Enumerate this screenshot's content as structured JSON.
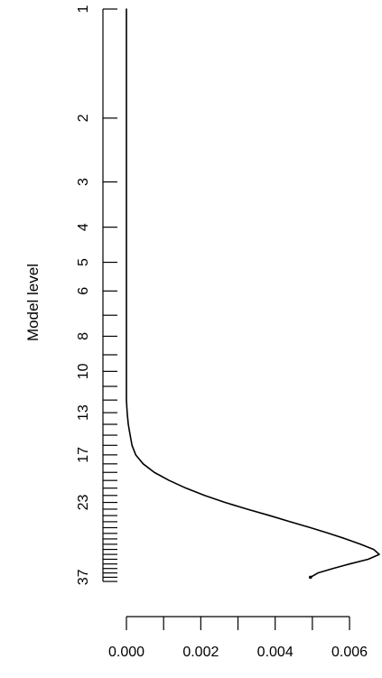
{
  "chart_data": {
    "type": "line",
    "title": "",
    "xlabel": "",
    "ylabel": "Model level",
    "xlim": [
      0.0,
      0.0068
    ],
    "ylim": [
      1,
      40
    ],
    "y_scale": "log",
    "y_reversed": true,
    "grid": false,
    "x_tick_values": [
      0.0,
      0.001,
      0.002,
      0.003,
      0.004,
      0.005,
      0.006
    ],
    "x_tick_labels": [
      {
        "value": 0.0,
        "label": "0.000"
      },
      {
        "value": 0.002,
        "label": "0.002"
      },
      {
        "value": 0.004,
        "label": "0.004"
      },
      {
        "value": 0.006,
        "label": "0.006"
      }
    ],
    "y_tick_values": [
      1,
      2,
      3,
      4,
      5,
      6,
      7,
      8,
      9,
      10,
      11,
      12,
      13,
      14,
      15,
      16,
      17,
      18,
      19,
      20,
      21,
      22,
      23,
      24,
      25,
      26,
      27,
      28,
      29,
      30,
      31,
      32,
      33,
      34,
      35,
      36,
      37,
      38
    ],
    "y_tick_labels": [
      {
        "value": 1,
        "label": "1"
      },
      {
        "value": 2,
        "label": "2"
      },
      {
        "value": 3,
        "label": "3"
      },
      {
        "value": 4,
        "label": "4"
      },
      {
        "value": 5,
        "label": "5"
      },
      {
        "value": 6,
        "label": "6"
      },
      {
        "value": 8,
        "label": "8"
      },
      {
        "value": 10,
        "label": "10"
      },
      {
        "value": 13,
        "label": "13"
      },
      {
        "value": 17,
        "label": "17"
      },
      {
        "value": 23,
        "label": "23"
      },
      {
        "value": 37,
        "label": "37"
      }
    ],
    "series": [
      {
        "points": [
          {
            "x": 0.0,
            "level": 1
          },
          {
            "x": 0.0,
            "level": 2
          },
          {
            "x": 0.0,
            "level": 3
          },
          {
            "x": 0.0,
            "level": 5
          },
          {
            "x": 0.0,
            "level": 8
          },
          {
            "x": 0.0,
            "level": 12
          },
          {
            "x": 2e-05,
            "level": 13
          },
          {
            "x": 5e-05,
            "level": 14
          },
          {
            "x": 0.0001,
            "level": 15
          },
          {
            "x": 0.00015,
            "level": 16
          },
          {
            "x": 0.00025,
            "level": 17
          },
          {
            "x": 0.00045,
            "level": 18
          },
          {
            "x": 0.00075,
            "level": 19
          },
          {
            "x": 0.00115,
            "level": 20
          },
          {
            "x": 0.0016,
            "level": 21
          },
          {
            "x": 0.0021,
            "level": 22
          },
          {
            "x": 0.00265,
            "level": 23
          },
          {
            "x": 0.00325,
            "level": 24
          },
          {
            "x": 0.00385,
            "level": 25
          },
          {
            "x": 0.0044,
            "level": 26
          },
          {
            "x": 0.00495,
            "level": 27
          },
          {
            "x": 0.00545,
            "level": 28
          },
          {
            "x": 0.0059,
            "level": 29
          },
          {
            "x": 0.0063,
            "level": 30
          },
          {
            "x": 0.00665,
            "level": 31
          },
          {
            "x": 0.0068,
            "level": 32
          },
          {
            "x": 0.0065,
            "level": 33
          },
          {
            "x": 0.006,
            "level": 34
          },
          {
            "x": 0.00555,
            "level": 35
          },
          {
            "x": 0.00515,
            "level": 36
          },
          {
            "x": 0.00495,
            "level": 37
          }
        ]
      }
    ]
  }
}
